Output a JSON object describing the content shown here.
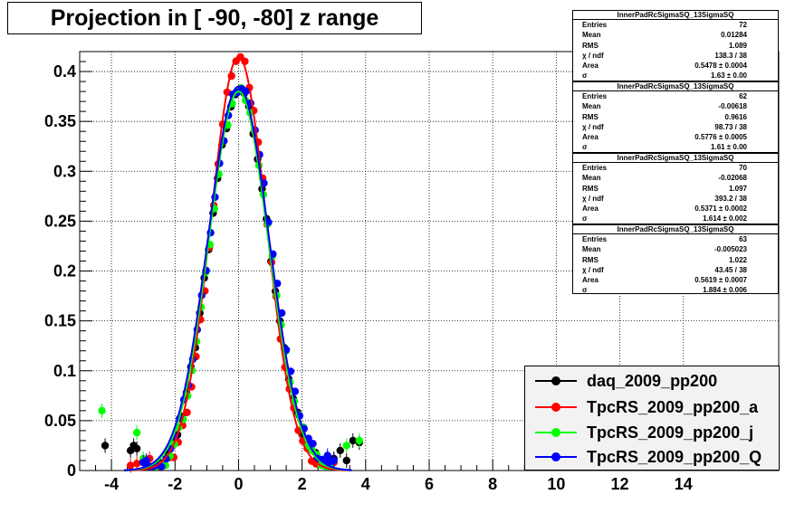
{
  "title": "Projection in [ -90, -80] z range",
  "colors": {
    "daq": "#000000",
    "a": "#ff0000",
    "j": "#00ff00",
    "Q": "#0000ff"
  },
  "stats": [
    {
      "name": "InnerPadRcSigmaSQ_13SigmaSQ",
      "entries_label": "Entries",
      "entries": "72",
      "mean_label": "Mean",
      "mean": "0.01284",
      "rms_label": "RMS",
      "rms": "1.089",
      "chi_label": "χ  / ndf",
      "chi": "138.3 / 38",
      "area_label": "Area",
      "area": "0.5478 ± 0.0004",
      "sigma_label": "σ",
      "sigma": "1.63 ± 0.00"
    },
    {
      "name": "InnerPadRcSigmaSQ_13SigmaSQ",
      "entries_label": "Entries",
      "entries": "62",
      "mean_label": "Mean",
      "mean": "-0.00618",
      "rms_label": "RMS",
      "rms": "0.9616",
      "chi_label": "χ  / ndf",
      "chi": "98.73 / 38",
      "area_label": "Area",
      "area": "0.5776 ± 0.0005",
      "sigma_label": "σ",
      "sigma": "1.61 ± 0.00"
    },
    {
      "name": "InnerPadRcSigmaSQ_13SigmaSQ",
      "entries_label": "Entries",
      "entries": "70",
      "mean_label": "Mean",
      "mean": "-0.02068",
      "rms_label": "RMS",
      "rms": "1.097",
      "chi_label": "χ  / ndf",
      "chi": "393.2 / 38",
      "area_label": "Area",
      "area": "0.5371 ± 0.0002",
      "sigma_label": "σ",
      "sigma": "1.614 ± 0.002"
    },
    {
      "name": "InnerPadRcSigmaSQ_13SigmaSQ",
      "entries_label": "Entries",
      "entries": "63",
      "mean_label": "Mean",
      "mean": "-0.005023",
      "rms_label": "RMS",
      "rms": "1.022",
      "chi_label": "χ  / ndf",
      "chi": "43.45 / 38",
      "area_label": "Area",
      "area": "0.5619 ± 0.0007",
      "sigma_label": "σ",
      "sigma": "1.884 ± 0.006"
    }
  ],
  "chart_data": {
    "type": "scatter",
    "title": "Projection in [ -90, -80] z range",
    "xlim": [
      -5,
      17
    ],
    "ylim": [
      0,
      0.42
    ],
    "grid": true,
    "legend_position": "bottom-right",
    "xticks": [
      "-4",
      "-2",
      "0",
      "2",
      "4",
      "6",
      "8",
      "10",
      "12",
      "14"
    ],
    "xtick_values": [
      -4,
      -2,
      0,
      2,
      4,
      6,
      8,
      10,
      12,
      14
    ],
    "yticks": [
      "0",
      "0.05",
      "0.1",
      "0.15",
      "0.2",
      "0.25",
      "0.3",
      "0.35",
      "0.4"
    ],
    "ytick_values": [
      0,
      0.05,
      0.1,
      0.15,
      0.2,
      0.25,
      0.3,
      0.35,
      0.4
    ],
    "series": [
      {
        "name": "daq_2009_pp200",
        "color": "#000000",
        "fit_amplitude": 0.385,
        "fit_sigma": 0.94,
        "x": [
          -4.2,
          -3.4,
          -3.3,
          -3.2,
          3.0,
          3.2,
          3.4,
          3.6,
          3.8
        ],
        "y": [
          0.025,
          0.02,
          0.025,
          0.022,
          0.012,
          0.02,
          0.01,
          0.03,
          0.028
        ]
      },
      {
        "name": "TpcRS_2009_pp200_a",
        "color": "#ff0000",
        "fit_amplitude": 0.415,
        "fit_sigma": 0.87,
        "x": [
          -3.4,
          -3.2,
          -3.0,
          -2.8,
          2.8,
          3.0
        ],
        "y": [
          0.005,
          0.007,
          0.01,
          0.012,
          0.01,
          0.008
        ]
      },
      {
        "name": "TpcRS_2009_pp200_j",
        "color": "#00ff00",
        "fit_amplitude": 0.38,
        "fit_sigma": 0.94,
        "x": [
          -4.3,
          -3.2,
          -3.0,
          3.4,
          3.8
        ],
        "y": [
          0.06,
          0.038,
          0.012,
          0.025,
          0.03
        ]
      },
      {
        "name": "TpcRS_2009_pp200_Q",
        "color": "#0000ff",
        "fit_amplitude": 0.385,
        "fit_sigma": 0.96,
        "x": [
          -3.0,
          -2.9,
          2.8,
          3.0
        ],
        "y": [
          0.008,
          0.01,
          0.015,
          0.01
        ]
      }
    ]
  }
}
